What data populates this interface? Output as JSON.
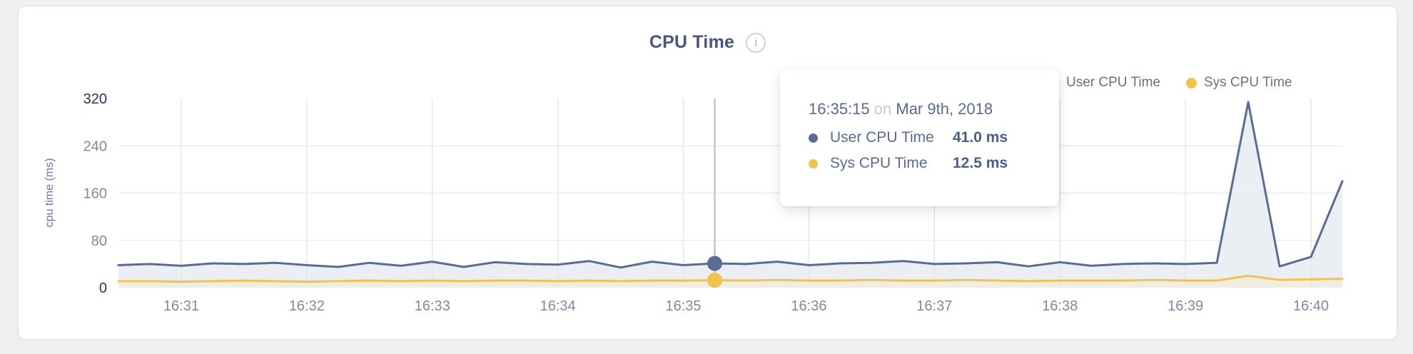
{
  "chart": {
    "title": "CPU Time",
    "info_icon_glyph": "i",
    "ylabel": "cpu time (ms)"
  },
  "legend": {
    "items": [
      {
        "label": "User CPU Time",
        "color": "#5b6c92"
      },
      {
        "label": "Sys CPU Time",
        "color": "#efc34e"
      }
    ]
  },
  "tooltip": {
    "time": "16:35:15",
    "connector": "on",
    "date": "Mar 9th, 2018",
    "rows": [
      {
        "label": "User CPU Time",
        "value": "41.0 ms",
        "color": "#5b6c92"
      },
      {
        "label": "Sys CPU Time",
        "value": "12.5 ms",
        "color": "#efc34e"
      }
    ]
  },
  "chart_data": {
    "type": "line",
    "title": "CPU Time",
    "ylabel": "cpu time (ms)",
    "ylim": [
      0,
      320
    ],
    "yticks": [
      0,
      80,
      160,
      240,
      320
    ],
    "xticks": [
      "16:31",
      "16:32",
      "16:33",
      "16:34",
      "16:35",
      "16:36",
      "16:37",
      "16:38",
      "16:39",
      "16:40"
    ],
    "grid": true,
    "legend_position": "top-right",
    "x_times": [
      "16:30:30",
      "16:30:45",
      "16:31:00",
      "16:31:15",
      "16:31:30",
      "16:31:45",
      "16:32:00",
      "16:32:15",
      "16:32:30",
      "16:32:45",
      "16:33:00",
      "16:33:15",
      "16:33:30",
      "16:33:45",
      "16:34:00",
      "16:34:15",
      "16:34:30",
      "16:34:45",
      "16:35:00",
      "16:35:15",
      "16:35:30",
      "16:35:45",
      "16:36:00",
      "16:36:15",
      "16:36:30",
      "16:36:45",
      "16:37:00",
      "16:37:15",
      "16:37:30",
      "16:37:45",
      "16:38:00",
      "16:38:15",
      "16:38:30",
      "16:38:45",
      "16:39:00",
      "16:39:15",
      "16:39:30",
      "16:39:45",
      "16:40:00",
      "16:40:15"
    ],
    "series": [
      {
        "name": "User CPU Time",
        "color": "#5b6c92",
        "fill": "#ebeef3",
        "values": [
          38,
          40,
          37,
          41,
          40,
          42,
          38,
          35,
          42,
          37,
          44,
          35,
          43,
          40,
          39,
          45,
          34,
          44,
          38,
          41,
          40,
          44,
          38,
          41,
          42,
          45,
          40,
          41,
          43,
          36,
          43,
          37,
          40,
          41,
          40,
          42,
          314,
          36,
          52,
          180
        ]
      },
      {
        "name": "Sys CPU Time",
        "color": "#efc34e",
        "fill": "#f1ede1",
        "values": [
          11,
          11,
          10,
          11,
          12,
          11,
          10,
          11,
          12,
          11,
          12,
          11,
          12,
          12,
          11,
          12,
          11,
          12,
          12,
          12.5,
          12,
          13,
          12,
          12,
          13,
          12,
          12,
          13,
          12,
          11,
          12,
          12,
          12,
          13,
          12,
          12,
          20,
          13,
          14,
          15
        ]
      }
    ],
    "hover": {
      "time": "16:35:15",
      "index": 19,
      "user_value": 41.0,
      "sys_value": 12.5,
      "crosshair_color": "#c4c6ca"
    },
    "axis_colors": {
      "tick_emphasis": "#273459",
      "tick_normal": "#7e89a0"
    },
    "grid_colors": {
      "vertical": "#e5e6e9",
      "horizontal": "#ececee"
    }
  }
}
